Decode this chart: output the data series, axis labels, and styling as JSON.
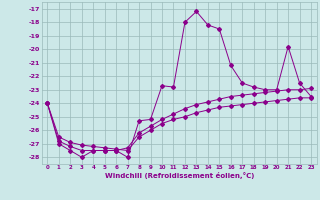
{
  "x": [
    0,
    1,
    2,
    3,
    4,
    5,
    6,
    7,
    8,
    9,
    10,
    11,
    12,
    13,
    14,
    15,
    16,
    17,
    18,
    19,
    20,
    21,
    22,
    23
  ],
  "line1": [
    -24.0,
    -27.0,
    -27.5,
    -28.0,
    -27.5,
    -27.5,
    -27.5,
    -28.0,
    -25.3,
    -25.2,
    -22.7,
    -22.8,
    -18.0,
    -17.2,
    -18.2,
    -18.5,
    -21.2,
    -22.5,
    -22.8,
    -23.0,
    -23.0,
    -19.8,
    -22.5,
    -23.5
  ],
  "line2": [
    -24.0,
    -26.8,
    -27.2,
    -27.5,
    -27.5,
    -27.5,
    -27.5,
    -27.3,
    -26.2,
    -25.7,
    -25.2,
    -24.8,
    -24.4,
    -24.1,
    -23.9,
    -23.7,
    -23.5,
    -23.4,
    -23.3,
    -23.2,
    -23.1,
    -23.0,
    -23.0,
    -22.9
  ],
  "line3": [
    -24.0,
    -26.5,
    -26.9,
    -27.1,
    -27.2,
    -27.3,
    -27.4,
    -27.5,
    -26.5,
    -26.0,
    -25.5,
    -25.2,
    -25.0,
    -24.7,
    -24.5,
    -24.3,
    -24.2,
    -24.1,
    -24.0,
    -23.9,
    -23.8,
    -23.7,
    -23.6,
    -23.6
  ],
  "line_color": "#8B008B",
  "bg_color": "#cce8e8",
  "grid_color": "#9ababa",
  "xlabel": "Windchill (Refroidissement éolien,°C)",
  "ylim": [
    -28.5,
    -16.5
  ],
  "xlim": [
    -0.5,
    23.5
  ],
  "yticks": [
    -17,
    -18,
    -19,
    -20,
    -21,
    -22,
    -23,
    -24,
    -25,
    -26,
    -27,
    -28
  ],
  "xticks": [
    0,
    1,
    2,
    3,
    4,
    5,
    6,
    7,
    8,
    9,
    10,
    11,
    12,
    13,
    14,
    15,
    16,
    17,
    18,
    19,
    20,
    21,
    22,
    23
  ],
  "marker": "D",
  "markersize": 2.0,
  "linewidth": 0.7
}
